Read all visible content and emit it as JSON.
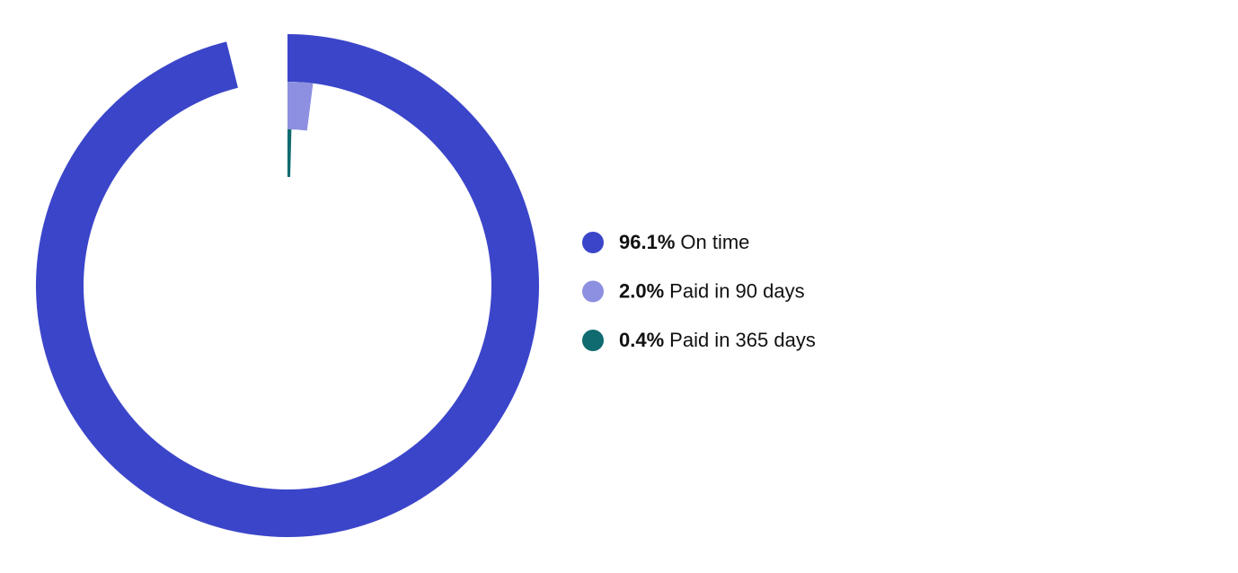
{
  "chart_data": {
    "type": "radial-bar",
    "categories": [
      "On time",
      "Paid in 90 days",
      "Paid in 365 days"
    ],
    "values": [
      96.1,
      2.0,
      0.4
    ],
    "value_labels": [
      "96.1%",
      "2.0%",
      "0.4%"
    ],
    "colors": [
      "#3b45c9",
      "#8d90e0",
      "#0f6b70"
    ]
  }
}
